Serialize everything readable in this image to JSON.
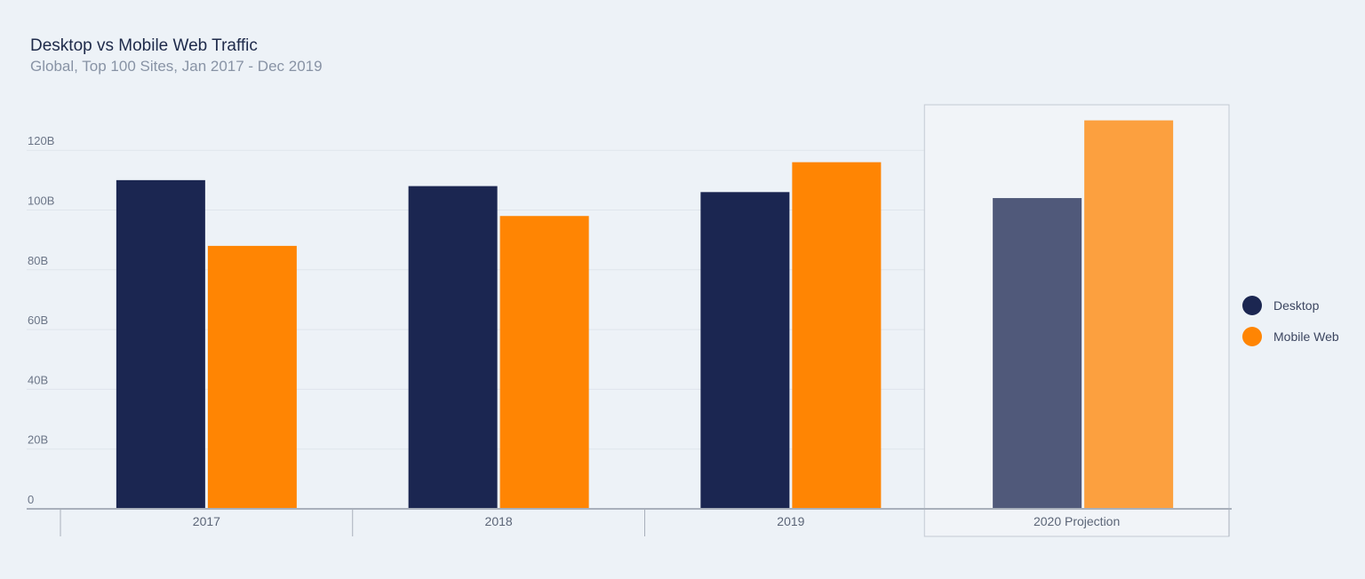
{
  "chart_data": {
    "type": "bar",
    "title": "Desktop vs Mobile Web Traffic",
    "subtitle": "Global, Top 100 Sites, Jan 2017 - Dec 2019",
    "categories": [
      "2017",
      "2018",
      "2019",
      "2020 Projection"
    ],
    "highlighted_category": "2020 Projection",
    "series": [
      {
        "name": "Desktop",
        "values": [
          110,
          108,
          106,
          104
        ],
        "color": "#1b2651",
        "projection_color": "#50597a"
      },
      {
        "name": "Mobile Web",
        "values": [
          88,
          98,
          116,
          130
        ],
        "color": "#ff8503",
        "projection_color": "#fca03f"
      }
    ],
    "yticks": [
      0,
      20,
      40,
      60,
      80,
      100,
      120
    ],
    "ytick_labels": [
      "0",
      "20B",
      "40B",
      "60B",
      "80B",
      "100B",
      "120B"
    ],
    "ylim": [
      0,
      130
    ],
    "grid": true,
    "legend_position": "right",
    "xlabel": "",
    "ylabel": ""
  }
}
